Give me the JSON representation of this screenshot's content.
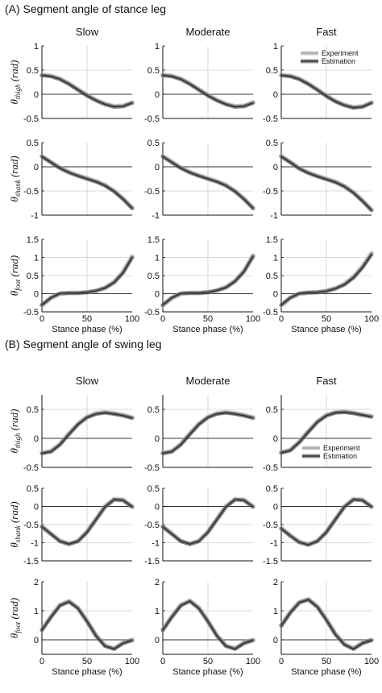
{
  "figure": {
    "sections": [
      {
        "title": "(A) Segment angle of stance leg"
      },
      {
        "title": "(B) Segment angle of swing leg"
      }
    ],
    "columns": [
      "Slow",
      "Moderate",
      "Fast"
    ],
    "xlabel": "Stance phase (%)",
    "legend": {
      "experiment": "Experiment",
      "estimation": "Estimation"
    },
    "colors": {
      "experiment": "#a6a6a6",
      "estimation": "#2e2e2e",
      "grid": "#cfcfcf",
      "zero_line": "#333333"
    }
  },
  "chart_data": [
    {
      "id": "A-thigh",
      "type": "line",
      "section": "A",
      "ylabel_symbol": "θ",
      "ylabel_sub": "thigh",
      "ylabel_unit": "(rad)",
      "xlim": [
        0,
        100
      ],
      "ylim": [
        -0.5,
        1
      ],
      "yticks": [
        -0.5,
        0,
        0.5,
        1
      ],
      "xticks": [
        0,
        50,
        100
      ],
      "x": [
        0,
        10,
        20,
        30,
        40,
        50,
        60,
        70,
        80,
        90,
        100
      ],
      "series": [
        {
          "name": "Experiment",
          "panels": [
            [
              0.4,
              0.38,
              0.32,
              0.22,
              0.1,
              -0.02,
              -0.12,
              -0.2,
              -0.25,
              -0.24,
              -0.17
            ],
            [
              0.4,
              0.38,
              0.32,
              0.22,
              0.1,
              -0.02,
              -0.12,
              -0.2,
              -0.25,
              -0.24,
              -0.17
            ],
            [
              0.4,
              0.38,
              0.32,
              0.22,
              0.1,
              -0.03,
              -0.14,
              -0.22,
              -0.27,
              -0.25,
              -0.17
            ]
          ]
        },
        {
          "name": "Estimation",
          "panels": [
            [
              0.39,
              0.37,
              0.31,
              0.21,
              0.09,
              -0.03,
              -0.13,
              -0.21,
              -0.26,
              -0.25,
              -0.18
            ],
            [
              0.39,
              0.37,
              0.31,
              0.21,
              0.09,
              -0.03,
              -0.13,
              -0.21,
              -0.26,
              -0.25,
              -0.18
            ],
            [
              0.39,
              0.37,
              0.31,
              0.21,
              0.09,
              -0.04,
              -0.15,
              -0.23,
              -0.28,
              -0.26,
              -0.18
            ]
          ]
        }
      ]
    },
    {
      "id": "A-shank",
      "type": "line",
      "section": "A",
      "ylabel_symbol": "θ",
      "ylabel_sub": "shank",
      "ylabel_unit": "(rad)",
      "xlim": [
        0,
        100
      ],
      "ylim": [
        -1,
        0.5
      ],
      "yticks": [
        -1,
        -0.5,
        0,
        0.5
      ],
      "xticks": [
        0,
        50,
        100
      ],
      "x": [
        0,
        10,
        20,
        30,
        40,
        50,
        60,
        70,
        80,
        90,
        100
      ],
      "series": [
        {
          "name": "Experiment",
          "panels": [
            [
              0.22,
              0.1,
              -0.02,
              -0.11,
              -0.18,
              -0.24,
              -0.3,
              -0.38,
              -0.5,
              -0.66,
              -0.85
            ],
            [
              0.22,
              0.1,
              -0.02,
              -0.11,
              -0.18,
              -0.24,
              -0.3,
              -0.38,
              -0.5,
              -0.66,
              -0.85
            ],
            [
              0.22,
              0.1,
              -0.03,
              -0.12,
              -0.19,
              -0.25,
              -0.31,
              -0.4,
              -0.53,
              -0.7,
              -0.89
            ]
          ]
        },
        {
          "name": "Estimation",
          "panels": [
            [
              0.21,
              0.09,
              -0.03,
              -0.12,
              -0.19,
              -0.25,
              -0.31,
              -0.39,
              -0.51,
              -0.67,
              -0.86
            ],
            [
              0.21,
              0.09,
              -0.03,
              -0.12,
              -0.19,
              -0.25,
              -0.31,
              -0.39,
              -0.51,
              -0.67,
              -0.86
            ],
            [
              0.21,
              0.09,
              -0.04,
              -0.13,
              -0.2,
              -0.26,
              -0.32,
              -0.41,
              -0.54,
              -0.71,
              -0.9
            ]
          ]
        }
      ]
    },
    {
      "id": "A-foot",
      "type": "line",
      "section": "A",
      "ylabel_symbol": "θ",
      "ylabel_sub": "foot",
      "ylabel_unit": "(rad)",
      "xlim": [
        0,
        100
      ],
      "ylim": [
        -0.5,
        1.5
      ],
      "yticks": [
        -0.5,
        0,
        0.5,
        1,
        1.5
      ],
      "xticks": [
        0,
        50,
        100
      ],
      "x": [
        0,
        10,
        20,
        30,
        40,
        50,
        60,
        70,
        80,
        90,
        100
      ],
      "series": [
        {
          "name": "Experiment",
          "panels": [
            [
              -0.32,
              -0.12,
              0.0,
              0.02,
              0.02,
              0.04,
              0.08,
              0.16,
              0.32,
              0.6,
              1.02
            ],
            [
              -0.32,
              -0.12,
              0.0,
              0.02,
              0.02,
              0.04,
              0.09,
              0.18,
              0.35,
              0.63,
              1.05
            ],
            [
              -0.32,
              -0.12,
              0.0,
              0.03,
              0.04,
              0.08,
              0.15,
              0.27,
              0.46,
              0.75,
              1.12
            ]
          ]
        },
        {
          "name": "Estimation",
          "panels": [
            [
              -0.31,
              -0.11,
              0.01,
              0.02,
              0.02,
              0.04,
              0.08,
              0.16,
              0.31,
              0.58,
              1.0
            ],
            [
              -0.31,
              -0.11,
              0.01,
              0.02,
              0.02,
              0.04,
              0.09,
              0.17,
              0.34,
              0.61,
              1.03
            ],
            [
              -0.31,
              -0.11,
              0.01,
              0.03,
              0.04,
              0.07,
              0.14,
              0.25,
              0.44,
              0.72,
              1.08
            ]
          ]
        }
      ]
    },
    {
      "id": "B-thigh",
      "type": "line",
      "section": "B",
      "ylabel_symbol": "θ",
      "ylabel_sub": "thigh",
      "ylabel_unit": "(rad)",
      "xlim": [
        0,
        100
      ],
      "ylim": [
        -0.5,
        0.75
      ],
      "yticks": [
        -0.5,
        0,
        0.5
      ],
      "xticks": [
        0,
        50,
        100
      ],
      "x": [
        0,
        10,
        20,
        30,
        40,
        50,
        60,
        70,
        80,
        90,
        100
      ],
      "series": [
        {
          "name": "Experiment",
          "panels": [
            [
              -0.25,
              -0.22,
              -0.1,
              0.08,
              0.25,
              0.37,
              0.43,
              0.45,
              0.43,
              0.4,
              0.36
            ],
            [
              -0.25,
              -0.22,
              -0.1,
              0.08,
              0.25,
              0.37,
              0.43,
              0.45,
              0.43,
              0.4,
              0.36
            ],
            [
              -0.24,
              -0.2,
              -0.06,
              0.12,
              0.29,
              0.4,
              0.45,
              0.46,
              0.44,
              0.41,
              0.38
            ]
          ]
        },
        {
          "name": "Estimation",
          "panels": [
            [
              -0.26,
              -0.23,
              -0.11,
              0.07,
              0.24,
              0.36,
              0.42,
              0.44,
              0.42,
              0.39,
              0.35
            ],
            [
              -0.26,
              -0.23,
              -0.11,
              0.07,
              0.24,
              0.36,
              0.42,
              0.44,
              0.42,
              0.39,
              0.35
            ],
            [
              -0.25,
              -0.21,
              -0.07,
              0.11,
              0.28,
              0.39,
              0.44,
              0.45,
              0.43,
              0.4,
              0.37
            ]
          ]
        }
      ]
    },
    {
      "id": "B-shank",
      "type": "line",
      "section": "B",
      "ylabel_symbol": "θ",
      "ylabel_sub": "shank",
      "ylabel_unit": "(rad)",
      "xlim": [
        0,
        100
      ],
      "ylim": [
        -1.5,
        0.5
      ],
      "yticks": [
        -1.5,
        -1,
        -0.5,
        0,
        0.5
      ],
      "xticks": [
        0,
        50,
        100
      ],
      "x": [
        0,
        10,
        20,
        30,
        40,
        50,
        60,
        70,
        80,
        90,
        100
      ],
      "series": [
        {
          "name": "Experiment",
          "panels": [
            [
              -0.55,
              -0.75,
              -0.95,
              -1.03,
              -0.95,
              -0.7,
              -0.35,
              0.0,
              0.2,
              0.18,
              0.0
            ],
            [
              -0.55,
              -0.75,
              -0.95,
              -1.03,
              -0.95,
              -0.7,
              -0.35,
              0.0,
              0.2,
              0.18,
              0.0
            ],
            [
              -0.6,
              -0.8,
              -0.98,
              -1.05,
              -0.95,
              -0.7,
              -0.35,
              0.0,
              0.2,
              0.18,
              0.0
            ]
          ]
        },
        {
          "name": "Estimation",
          "panels": [
            [
              -0.56,
              -0.76,
              -0.96,
              -1.04,
              -0.96,
              -0.71,
              -0.36,
              -0.01,
              0.19,
              0.17,
              -0.01
            ],
            [
              -0.56,
              -0.76,
              -0.96,
              -1.04,
              -0.96,
              -0.71,
              -0.36,
              -0.01,
              0.19,
              0.17,
              -0.01
            ],
            [
              -0.61,
              -0.81,
              -0.99,
              -1.06,
              -0.96,
              -0.71,
              -0.36,
              -0.01,
              0.19,
              0.17,
              -0.01
            ]
          ]
        }
      ]
    },
    {
      "id": "B-foot",
      "type": "line",
      "section": "B",
      "ylabel_symbol": "θ",
      "ylabel_sub": "foot",
      "ylabel_unit": "(rad)",
      "xlim": [
        0,
        100
      ],
      "ylim": [
        -0.5,
        2
      ],
      "yticks": [
        0,
        1,
        2
      ],
      "xticks": [
        0,
        50,
        100
      ],
      "x": [
        0,
        10,
        20,
        30,
        40,
        50,
        60,
        70,
        80,
        90,
        100
      ],
      "series": [
        {
          "name": "Experiment",
          "panels": [
            [
              0.35,
              0.8,
              1.2,
              1.33,
              1.1,
              0.65,
              0.15,
              -0.2,
              -0.3,
              -0.1,
              0.0
            ],
            [
              0.35,
              0.8,
              1.2,
              1.35,
              1.1,
              0.65,
              0.15,
              -0.2,
              -0.3,
              -0.1,
              0.0
            ],
            [
              0.5,
              0.95,
              1.3,
              1.4,
              1.15,
              0.7,
              0.2,
              -0.15,
              -0.3,
              -0.1,
              0.0
            ]
          ]
        },
        {
          "name": "Estimation",
          "panels": [
            [
              0.33,
              0.78,
              1.18,
              1.31,
              1.08,
              0.63,
              0.13,
              -0.22,
              -0.32,
              -0.12,
              -0.02
            ],
            [
              0.33,
              0.78,
              1.18,
              1.33,
              1.08,
              0.63,
              0.13,
              -0.22,
              -0.32,
              -0.12,
              -0.02
            ],
            [
              0.48,
              0.93,
              1.28,
              1.38,
              1.13,
              0.68,
              0.18,
              -0.17,
              -0.32,
              -0.12,
              -0.02
            ]
          ]
        }
      ]
    }
  ]
}
